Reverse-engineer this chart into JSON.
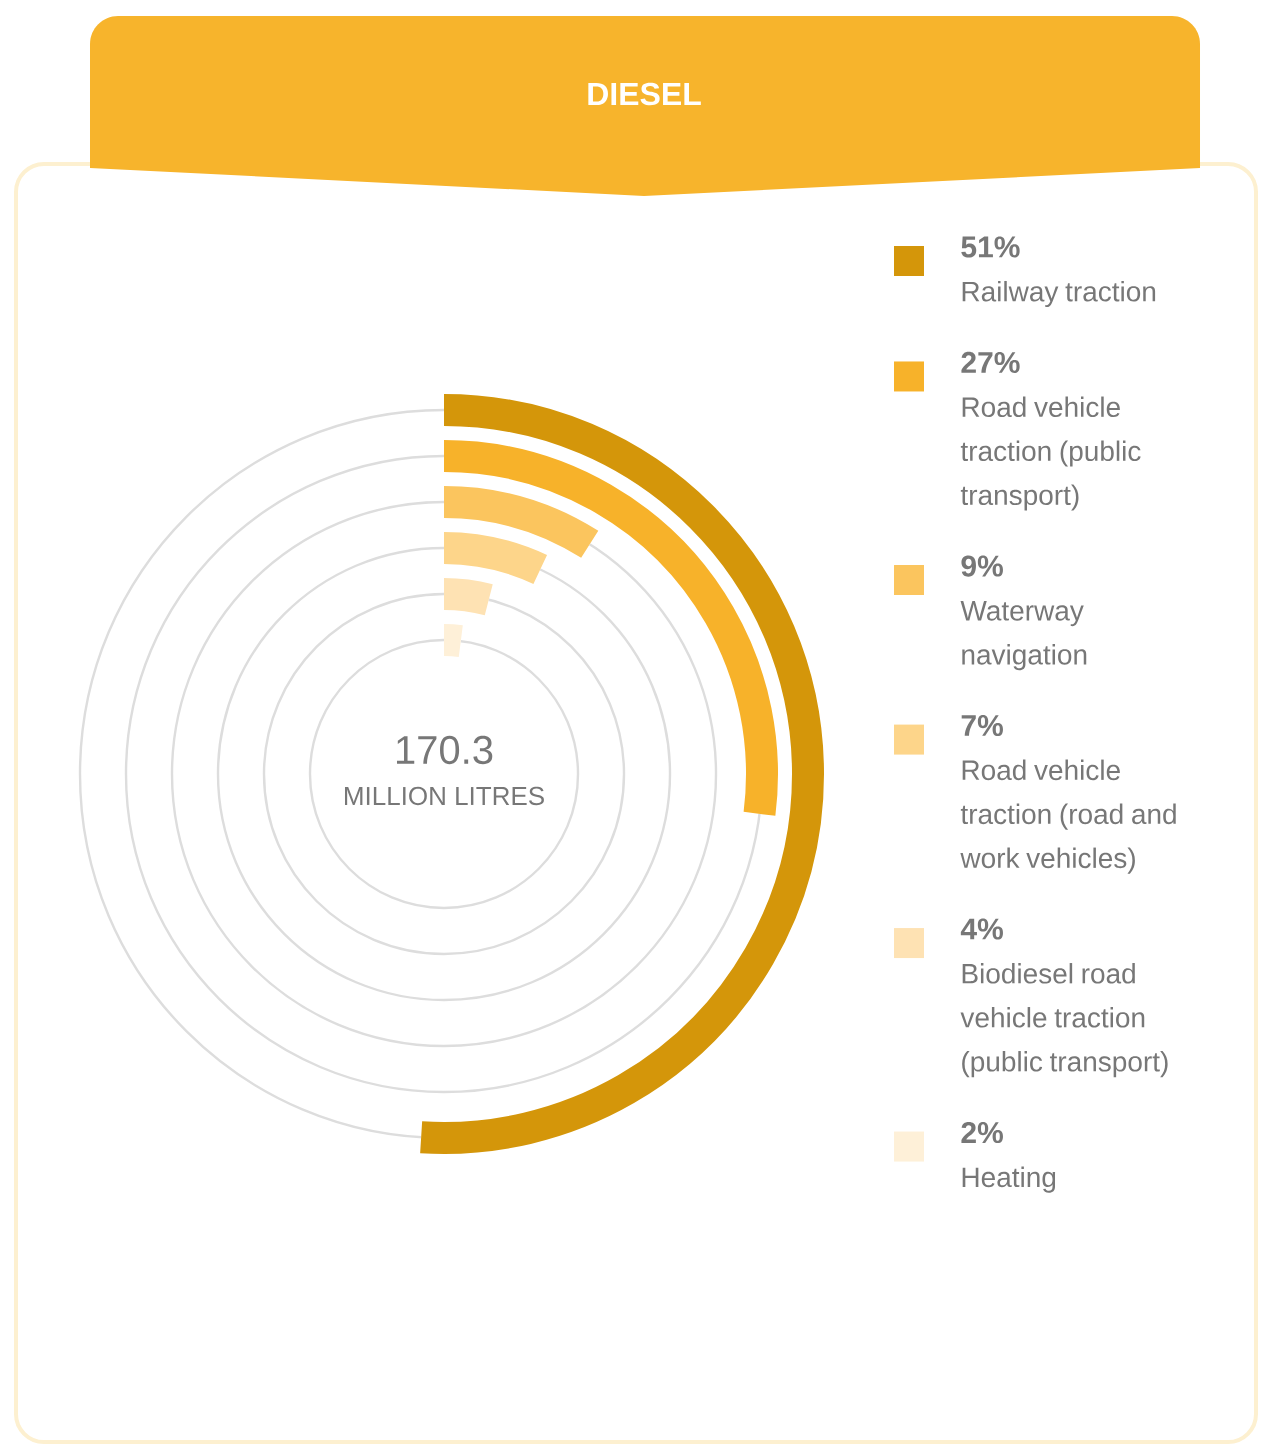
{
  "chart_data": {
    "type": "other",
    "title": "DIESEL",
    "categories": [
      "Railway traction",
      "Road vehicle traction (public transport)",
      "Waterway navigation",
      "Road vehicle traction (road and work vehicles)",
      "Biodiesel road vehicle traction (public transport)",
      "Heating"
    ],
    "values": [
      51,
      27,
      9,
      7,
      4,
      2
    ],
    "value_labels": [
      "51%",
      "27%",
      "9%",
      "7%",
      "4%",
      "2%"
    ],
    "colors": [
      "#d4960a",
      "#f7b22a",
      "#fbc55e",
      "#fdd58a",
      "#fee2b3",
      "#fef0d8"
    ],
    "annotations": [
      "170.3",
      "MILLION LITRES"
    ]
  }
}
